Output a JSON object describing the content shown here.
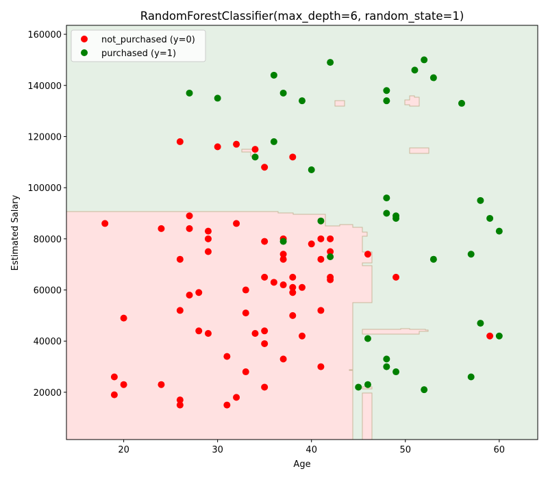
{
  "chart_data": {
    "type": "scatter",
    "title": "RandomForestClassifier(max_depth=6, random_state=1)",
    "xlabel": "Age",
    "ylabel": "Estimated Salary",
    "xlim": [
      13.9,
      64.1
    ],
    "ylim": [
      1500,
      163500
    ],
    "xticks": [
      20,
      30,
      40,
      50,
      60
    ],
    "yticks": [
      20000,
      40000,
      60000,
      80000,
      100000,
      120000,
      140000,
      160000
    ],
    "grid": false,
    "legend": "upper left",
    "series": [
      {
        "name": "not_purchased (y=0)",
        "color": "#ff0000",
        "x": [
          18,
          24,
          26,
          30,
          32,
          34,
          35,
          38,
          27,
          27,
          29,
          29,
          32,
          29,
          26,
          35,
          37,
          40,
          41,
          42,
          42,
          37,
          37,
          41,
          46,
          35,
          36,
          37,
          38,
          38,
          38,
          39,
          42,
          42,
          33,
          28,
          27,
          26,
          20,
          33,
          38,
          41,
          49,
          28,
          29,
          34,
          35,
          35,
          39,
          31,
          37,
          33,
          41,
          19,
          20,
          24,
          35,
          19,
          26,
          32,
          26,
          31,
          59
        ],
        "values": [
          86000,
          84000,
          118000,
          116000,
          117000,
          115000,
          108000,
          112000,
          89000,
          84000,
          83000,
          80000,
          86000,
          75000,
          72000,
          79000,
          80000,
          78000,
          80000,
          80000,
          75000,
          74000,
          72000,
          72000,
          74000,
          65000,
          63000,
          62000,
          65000,
          61000,
          59000,
          61000,
          65000,
          64000,
          60000,
          59000,
          58000,
          52000,
          49000,
          51000,
          50000,
          52000,
          65000,
          44000,
          43000,
          43000,
          44000,
          39000,
          42000,
          34000,
          33000,
          28000,
          30000,
          26000,
          23000,
          23000,
          22000,
          19000,
          17000,
          18000,
          15000,
          15000,
          42000
        ]
      },
      {
        "name": "purchased (y=1)",
        "color": "#008000",
        "x": [
          27,
          30,
          36,
          37,
          39,
          42,
          48,
          48,
          51,
          52,
          53,
          56,
          36,
          34,
          40,
          48,
          58,
          48,
          49,
          49,
          59,
          41,
          60,
          37,
          42,
          53,
          57,
          58,
          60,
          46,
          48,
          48,
          49,
          57,
          46,
          45,
          52
        ],
        "values": [
          137000,
          135000,
          144000,
          137000,
          134000,
          149000,
          138000,
          134000,
          146000,
          150000,
          143000,
          133000,
          118000,
          112000,
          107000,
          96000,
          95000,
          90000,
          89000,
          88000,
          88000,
          87000,
          83000,
          79000,
          73000,
          72000,
          74000,
          47000,
          42000,
          41000,
          33000,
          30000,
          28000,
          26000,
          23000,
          22000,
          21000
        ]
      }
    ]
  }
}
